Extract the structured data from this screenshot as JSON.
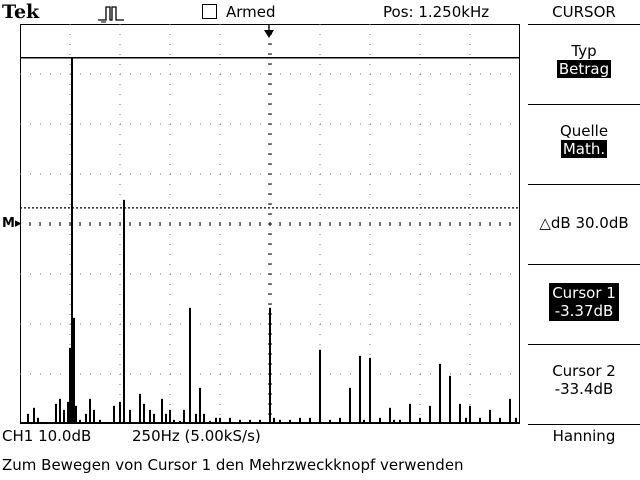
{
  "header": {
    "brand": "Tek",
    "trigger_status": "Armed",
    "position": "Pos: 1.250kHz",
    "menu_title": "CURSOR"
  },
  "menu": {
    "type_label": "Typ",
    "type_value": "Betrag",
    "source_label": "Quelle",
    "source_value": "Math.",
    "delta": "△dB 30.0dB",
    "cursor1_label": "Cursor 1",
    "cursor1_value": "-3.37dB",
    "cursor2_label": "Cursor 2",
    "cursor2_value": "-33.4dB"
  },
  "status": {
    "channel_scale": "CH1 10.0dB",
    "freq_scale": "250Hz (5.00kS/s)",
    "window": "Hanning"
  },
  "message": "Zum Bewegen von Cursor 1 den Mehrzweckknopf verwenden",
  "math_marker": "M",
  "chart_data": {
    "type": "bar",
    "title": "",
    "x_unit": "Hz",
    "x_range": [
      0,
      2500
    ],
    "y_unit": "dB",
    "y_range": [
      -76.63,
      3.37
    ],
    "cursor1_db": -3.37,
    "cursor2_db": -33.4,
    "x": [
      40,
      70,
      90,
      180,
      200,
      220,
      240,
      250,
      260,
      270,
      280,
      300,
      330,
      350,
      370,
      400,
      470,
      500,
      520,
      550,
      600,
      620,
      650,
      670,
      710,
      730,
      750,
      770,
      800,
      820,
      850,
      880,
      900,
      920,
      950,
      980,
      1000,
      1050,
      1100,
      1150,
      1200,
      1250,
      1270,
      1300,
      1350,
      1400,
      1450,
      1500,
      1550,
      1600,
      1650,
      1700,
      1720,
      1750,
      1800,
      1850,
      1870,
      1900,
      1950,
      2000,
      2050,
      2100,
      2150,
      2200,
      2230,
      2250,
      2300,
      2350,
      2400,
      2450,
      2480
    ],
    "y": [
      -74.6,
      -73.4,
      -75.4,
      -72.6,
      -71.6,
      -73.8,
      -72.2,
      -61.4,
      -3.37,
      -55.4,
      -73.0,
      -75.8,
      -74.6,
      -71.6,
      -73.8,
      -75.8,
      -73.0,
      -72.2,
      -31.8,
      -73.8,
      -70.6,
      -72.6,
      -73.8,
      -74.6,
      -71.6,
      -74.6,
      -73.8,
      -75.8,
      -76.0,
      -73.8,
      -53.4,
      -74.6,
      -69.4,
      -74.6,
      -76.0,
      -75.4,
      -75.4,
      -75.4,
      -75.8,
      -75.8,
      -75.8,
      -53.4,
      -75.4,
      -75.8,
      -75.8,
      -75.4,
      -75.4,
      -61.8,
      -75.8,
      -75.4,
      -69.4,
      -63.0,
      -75.8,
      -63.4,
      -75.4,
      -73.4,
      -75.8,
      -75.8,
      -72.6,
      -75.4,
      -73.0,
      -64.6,
      -67.0,
      -72.6,
      -75.4,
      -73.0,
      -75.4,
      -73.8,
      -75.4,
      -71.6,
      -75.4
    ]
  }
}
